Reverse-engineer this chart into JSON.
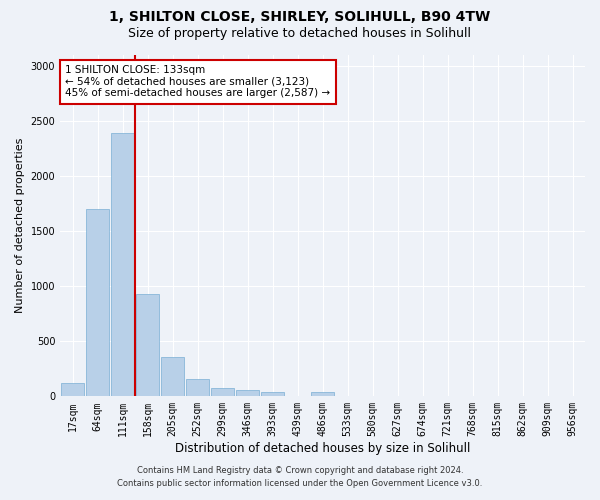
{
  "title1": "1, SHILTON CLOSE, SHIRLEY, SOLIHULL, B90 4TW",
  "title2": "Size of property relative to detached houses in Solihull",
  "xlabel": "Distribution of detached houses by size in Solihull",
  "ylabel": "Number of detached properties",
  "categories": [
    "17sqm",
    "64sqm",
    "111sqm",
    "158sqm",
    "205sqm",
    "252sqm",
    "299sqm",
    "346sqm",
    "393sqm",
    "439sqm",
    "486sqm",
    "533sqm",
    "580sqm",
    "627sqm",
    "674sqm",
    "721sqm",
    "768sqm",
    "815sqm",
    "862sqm",
    "909sqm",
    "956sqm"
  ],
  "values": [
    120,
    1700,
    2390,
    930,
    360,
    155,
    80,
    55,
    35,
    5,
    35,
    5,
    5,
    5,
    0,
    0,
    0,
    0,
    0,
    0,
    0
  ],
  "bar_color": "#b8d0e8",
  "bar_edge_color": "#7aafd4",
  "vline_index": 2,
  "vline_color": "#cc0000",
  "annotation_title": "1 SHILTON CLOSE: 133sqm",
  "annotation_line1": "← 54% of detached houses are smaller (3,123)",
  "annotation_line2": "45% of semi-detached houses are larger (2,587) →",
  "annotation_box_color": "#ffffff",
  "annotation_box_edge_color": "#cc0000",
  "ylim": [
    0,
    3100
  ],
  "yticks": [
    0,
    500,
    1000,
    1500,
    2000,
    2500,
    3000
  ],
  "footer1": "Contains HM Land Registry data © Crown copyright and database right 2024.",
  "footer2": "Contains public sector information licensed under the Open Government Licence v3.0.",
  "bg_color": "#eef2f8",
  "plot_bg_color": "#eef2f8",
  "title1_fontsize": 10,
  "title2_fontsize": 9,
  "tick_fontsize": 7,
  "ylabel_fontsize": 8,
  "xlabel_fontsize": 8.5,
  "footer_fontsize": 6,
  "annotation_fontsize": 7.5
}
